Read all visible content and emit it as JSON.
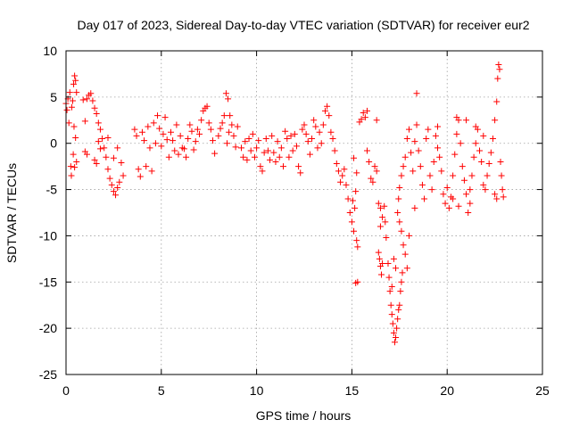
{
  "chart_data": {
    "type": "scatter",
    "title": "Day 017 of 2023, Sidereal Day-to-day VTEC variation (SDTVAR) for receiver eur2",
    "xlabel": "GPS time / hours",
    "ylabel": "SDTVAR / TECUs",
    "xlim": [
      0,
      25
    ],
    "ylim": [
      -25,
      10
    ],
    "xticks": [
      0,
      5,
      10,
      15,
      20,
      25
    ],
    "yticks": [
      -25,
      -20,
      -15,
      -10,
      -5,
      0,
      5,
      10
    ],
    "grid": true,
    "marker": "+",
    "color": "#ff0000",
    "series": [
      {
        "name": "SDTVAR",
        "points": [
          [
            0.0,
            4.3
          ],
          [
            0.05,
            3.6
          ],
          [
            0.1,
            4.8
          ],
          [
            0.15,
            2.2
          ],
          [
            0.2,
            5.5
          ],
          [
            0.25,
            -2.5
          ],
          [
            0.28,
            -3.5
          ],
          [
            0.3,
            3.9
          ],
          [
            0.35,
            4.6
          ],
          [
            0.4,
            6.4
          ],
          [
            0.45,
            7.3
          ],
          [
            0.5,
            6.8
          ],
          [
            0.55,
            5.5
          ],
          [
            0.42,
            1.8
          ],
          [
            0.5,
            0.6
          ],
          [
            0.38,
            -1.2
          ],
          [
            0.45,
            -2.6
          ],
          [
            0.55,
            -2.0
          ],
          [
            0.9,
            4.7
          ],
          [
            1.0,
            2.4
          ],
          [
            1.1,
            4.8
          ],
          [
            1.2,
            5.2
          ],
          [
            1.3,
            5.4
          ],
          [
            1.4,
            4.6
          ],
          [
            1.5,
            3.8
          ],
          [
            1.6,
            3.2
          ],
          [
            1.7,
            2.2
          ],
          [
            1.8,
            1.5
          ],
          [
            1.9,
            0.5
          ],
          [
            2.0,
            -0.5
          ],
          [
            2.1,
            -1.5
          ],
          [
            2.2,
            -2.8
          ],
          [
            2.3,
            -3.8
          ],
          [
            2.4,
            -4.5
          ],
          [
            2.5,
            -5.2
          ],
          [
            2.6,
            -5.6
          ],
          [
            2.7,
            -4.8
          ],
          [
            2.8,
            -4.2
          ],
          [
            1.0,
            -0.9
          ],
          [
            1.1,
            -1.2
          ],
          [
            1.5,
            -1.8
          ],
          [
            1.6,
            -2.2
          ],
          [
            1.7,
            0.2
          ],
          [
            1.8,
            -0.6
          ],
          [
            2.5,
            -1.6
          ],
          [
            2.7,
            -0.5
          ],
          [
            2.9,
            -2.1
          ],
          [
            3.0,
            -3.5
          ],
          [
            2.2,
            0.6
          ],
          [
            3.6,
            1.5
          ],
          [
            3.7,
            0.8
          ],
          [
            3.8,
            -2.8
          ],
          [
            3.9,
            -3.6
          ],
          [
            4.0,
            1.2
          ],
          [
            4.1,
            0.3
          ],
          [
            4.2,
            -2.5
          ],
          [
            4.3,
            1.8
          ],
          [
            4.4,
            -0.5
          ],
          [
            4.5,
            -3.0
          ],
          [
            4.6,
            2.2
          ],
          [
            4.7,
            0.0
          ],
          [
            4.8,
            3.0
          ],
          [
            4.9,
            1.6
          ],
          [
            5.0,
            -0.3
          ],
          [
            5.1,
            1.0
          ],
          [
            5.2,
            2.8
          ],
          [
            5.3,
            0.4
          ],
          [
            5.4,
            -1.5
          ],
          [
            5.5,
            1.2
          ],
          [
            5.6,
            0.3
          ],
          [
            5.7,
            -0.8
          ],
          [
            5.8,
            2.0
          ],
          [
            5.9,
            -1.2
          ],
          [
            6.0,
            0.8
          ],
          [
            6.1,
            -0.5
          ],
          [
            6.2,
            -0.6
          ],
          [
            6.3,
            -1.5
          ],
          [
            6.4,
            0.5
          ],
          [
            6.5,
            2.0
          ],
          [
            6.6,
            1.3
          ],
          [
            6.7,
            -0.7
          ],
          [
            6.8,
            0.2
          ],
          [
            6.9,
            1.5
          ],
          [
            7.0,
            1.0
          ],
          [
            7.1,
            2.5
          ],
          [
            7.2,
            3.5
          ],
          [
            7.3,
            3.8
          ],
          [
            7.4,
            4.0
          ],
          [
            7.5,
            2.2
          ],
          [
            7.6,
            1.5
          ],
          [
            7.7,
            0.3
          ],
          [
            7.8,
            -1.1
          ],
          [
            8.0,
            0.8
          ],
          [
            8.1,
            1.6
          ],
          [
            8.2,
            2.2
          ],
          [
            8.3,
            3.0
          ],
          [
            8.4,
            5.4
          ],
          [
            8.5,
            4.8
          ],
          [
            8.6,
            3.0
          ],
          [
            8.7,
            2.0
          ],
          [
            8.8,
            0.8
          ],
          [
            8.9,
            -0.4
          ],
          [
            8.55,
            1.2
          ],
          [
            8.45,
            0.0
          ],
          [
            9.0,
            1.8
          ],
          [
            9.2,
            -0.5
          ],
          [
            9.3,
            -1.5
          ],
          [
            9.4,
            0.2
          ],
          [
            9.5,
            -1.8
          ],
          [
            9.6,
            0.5
          ],
          [
            9.7,
            -0.8
          ],
          [
            9.8,
            1.0
          ],
          [
            9.9,
            -1.5
          ],
          [
            10.0,
            -0.5
          ],
          [
            10.1,
            0.3
          ],
          [
            10.2,
            -2.5
          ],
          [
            10.3,
            -3.0
          ],
          [
            10.4,
            -1.0
          ],
          [
            10.5,
            0.5
          ],
          [
            10.6,
            -0.8
          ],
          [
            10.7,
            -1.8
          ],
          [
            10.8,
            0.8
          ],
          [
            10.9,
            -1.0
          ],
          [
            11.0,
            -2.0
          ],
          [
            11.1,
            0.2
          ],
          [
            11.2,
            -1.5
          ],
          [
            11.3,
            -0.5
          ],
          [
            11.4,
            -2.5
          ],
          [
            11.5,
            1.3
          ],
          [
            11.6,
            0.5
          ],
          [
            11.7,
            -1.5
          ],
          [
            11.8,
            0.8
          ],
          [
            11.9,
            -0.8
          ],
          [
            12.0,
            1.0
          ],
          [
            12.1,
            -0.3
          ],
          [
            12.2,
            -2.5
          ],
          [
            12.3,
            -3.2
          ],
          [
            12.4,
            1.5
          ],
          [
            12.5,
            2.0
          ],
          [
            12.6,
            1.0
          ],
          [
            12.7,
            0.2
          ],
          [
            12.8,
            -1.2
          ],
          [
            12.9,
            0.5
          ],
          [
            13.0,
            2.5
          ],
          [
            13.1,
            1.8
          ],
          [
            13.2,
            -0.5
          ],
          [
            13.3,
            1.2
          ],
          [
            13.4,
            0.0
          ],
          [
            13.5,
            2.0
          ],
          [
            13.6,
            3.5
          ],
          [
            13.7,
            4.0
          ],
          [
            13.8,
            3.0
          ],
          [
            13.9,
            1.2
          ],
          [
            14.0,
            0.5
          ],
          [
            14.1,
            -0.8
          ],
          [
            14.2,
            -2.2
          ],
          [
            14.3,
            -3.0
          ],
          [
            14.4,
            -4.2
          ],
          [
            14.5,
            -3.5
          ],
          [
            14.6,
            -2.8
          ],
          [
            14.7,
            -4.5
          ],
          [
            14.8,
            -6.0
          ],
          [
            14.9,
            -7.5
          ],
          [
            15.0,
            -8.5
          ],
          [
            15.1,
            -9.5
          ],
          [
            15.05,
            -6.2
          ],
          [
            15.15,
            -7.0
          ],
          [
            15.2,
            -5.2
          ],
          [
            15.25,
            -10.5
          ],
          [
            15.3,
            -11.2
          ],
          [
            15.2,
            -15.1
          ],
          [
            15.3,
            -15.0
          ],
          [
            15.1,
            -1.6
          ],
          [
            15.25,
            -3.2
          ],
          [
            15.4,
            2.3
          ],
          [
            15.5,
            2.6
          ],
          [
            15.6,
            3.3
          ],
          [
            15.7,
            2.8
          ],
          [
            15.8,
            -0.8
          ],
          [
            15.9,
            -2.0
          ],
          [
            16.0,
            -3.8
          ],
          [
            16.1,
            -4.2
          ],
          [
            16.2,
            -2.5
          ],
          [
            16.3,
            -3.0
          ],
          [
            16.4,
            -6.5
          ],
          [
            16.5,
            -7.0
          ],
          [
            16.6,
            -8.0
          ],
          [
            16.7,
            -6.8
          ],
          [
            16.75,
            -8.5
          ],
          [
            16.5,
            -9.0
          ],
          [
            16.4,
            -11.8
          ],
          [
            16.45,
            -12.5
          ],
          [
            16.5,
            -13.3
          ],
          [
            16.55,
            -14.2
          ],
          [
            16.6,
            -13.0
          ],
          [
            16.8,
            -10.2
          ],
          [
            16.9,
            -13.0
          ],
          [
            16.95,
            -14.5
          ],
          [
            17.0,
            -16.0
          ],
          [
            17.05,
            -17.5
          ],
          [
            17.1,
            -18.5
          ],
          [
            17.15,
            -19.5
          ],
          [
            17.2,
            -20.5
          ],
          [
            17.25,
            -21.5
          ],
          [
            17.3,
            -21.0
          ],
          [
            17.35,
            -20.0
          ],
          [
            17.4,
            -19.0
          ],
          [
            17.45,
            -18.0
          ],
          [
            17.5,
            -17.5
          ],
          [
            17.55,
            -16.0
          ],
          [
            17.6,
            -15.0
          ],
          [
            17.65,
            -14.0
          ],
          [
            17.1,
            -15.5
          ],
          [
            17.2,
            -12.5
          ],
          [
            17.3,
            -13.5
          ],
          [
            17.4,
            -7.5
          ],
          [
            17.5,
            -8.5
          ],
          [
            17.6,
            -9.5
          ],
          [
            17.7,
            -11.0
          ],
          [
            17.8,
            -12.0
          ],
          [
            17.9,
            -13.5
          ],
          [
            17.45,
            -6.0
          ],
          [
            17.5,
            -4.8
          ],
          [
            17.6,
            -3.5
          ],
          [
            17.7,
            -2.5
          ],
          [
            17.8,
            -1.5
          ],
          [
            17.9,
            0.5
          ],
          [
            18.0,
            1.5
          ],
          [
            18.1,
            -1.0
          ],
          [
            18.2,
            -3.0
          ],
          [
            18.3,
            0.2
          ],
          [
            18.4,
            2.0
          ],
          [
            18.5,
            -0.8
          ],
          [
            18.6,
            -2.5
          ],
          [
            18.7,
            -4.5
          ],
          [
            18.8,
            -6.0
          ],
          [
            18.9,
            0.5
          ],
          [
            19.0,
            1.5
          ],
          [
            19.1,
            -3.5
          ],
          [
            19.2,
            -5.0
          ],
          [
            19.3,
            -2.0
          ],
          [
            19.4,
            0.8
          ],
          [
            19.5,
            -0.5
          ],
          [
            19.6,
            -1.5
          ],
          [
            19.7,
            -3.0
          ],
          [
            19.8,
            -5.5
          ],
          [
            19.9,
            -6.5
          ],
          [
            20.0,
            -4.8
          ],
          [
            20.1,
            -7.0
          ],
          [
            20.2,
            -5.8
          ],
          [
            20.3,
            -3.5
          ],
          [
            20.4,
            -1.2
          ],
          [
            20.5,
            1.0
          ],
          [
            20.6,
            2.5
          ],
          [
            20.7,
            0.0
          ],
          [
            20.8,
            -2.5
          ],
          [
            20.9,
            -4.0
          ],
          [
            21.0,
            -5.5
          ],
          [
            21.1,
            -7.5
          ],
          [
            21.2,
            -6.5
          ],
          [
            21.3,
            -3.5
          ],
          [
            21.4,
            -1.5
          ],
          [
            21.5,
            0.0
          ],
          [
            21.6,
            1.5
          ],
          [
            21.7,
            -0.8
          ],
          [
            21.8,
            -2.0
          ],
          [
            21.9,
            -4.5
          ],
          [
            22.0,
            -5.0
          ],
          [
            22.1,
            -3.5
          ],
          [
            22.2,
            -2.2
          ],
          [
            22.3,
            -1.0
          ],
          [
            22.4,
            0.5
          ],
          [
            22.5,
            2.5
          ],
          [
            22.6,
            4.5
          ],
          [
            22.65,
            7.0
          ],
          [
            22.7,
            8.5
          ],
          [
            22.75,
            8.0
          ],
          [
            22.8,
            -2.0
          ],
          [
            22.85,
            -3.5
          ],
          [
            22.9,
            -5.0
          ],
          [
            22.95,
            -5.8
          ],
          [
            20.5,
            2.8
          ],
          [
            21.0,
            2.5
          ],
          [
            21.5,
            1.8
          ],
          [
            21.9,
            0.8
          ],
          [
            22.5,
            -5.5
          ],
          [
            22.6,
            -6.0
          ],
          [
            20.3,
            -6.0
          ],
          [
            20.6,
            -6.8
          ],
          [
            21.2,
            -5.0
          ],
          [
            18.4,
            5.4
          ],
          [
            18.0,
            -10.0
          ],
          [
            18.3,
            -7.0
          ],
          [
            19.5,
            1.8
          ],
          [
            15.8,
            3.5
          ],
          [
            16.3,
            2.5
          ]
        ]
      }
    ]
  }
}
